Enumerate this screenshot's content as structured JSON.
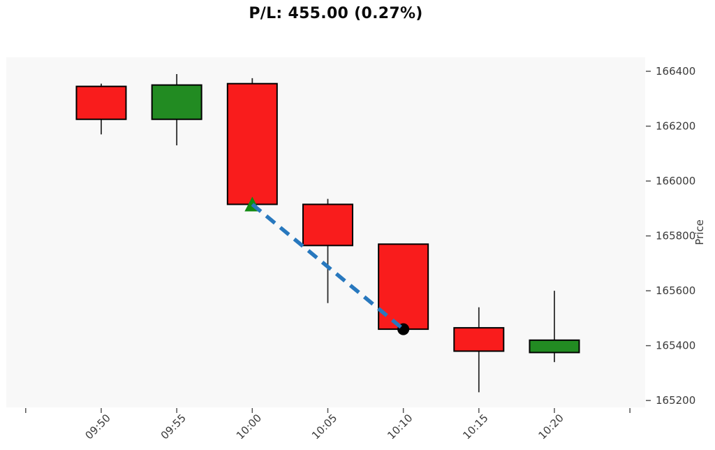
{
  "chart_data": {
    "type": "candlestick",
    "title": "P/L: 455.00 (0.27%)",
    "xlabel": "",
    "ylabel": "Price",
    "categories": [
      "09:50",
      "09:55",
      "10:00",
      "10:05",
      "10:10",
      "10:15",
      "10:20"
    ],
    "ohlc": [
      {
        "time": "09:50",
        "open": 166345,
        "high": 166355,
        "low": 166170,
        "close": 166225
      },
      {
        "time": "09:55",
        "open": 166225,
        "high": 166390,
        "low": 166130,
        "close": 166350
      },
      {
        "time": "10:00",
        "open": 166355,
        "high": 166375,
        "low": 165915,
        "close": 165915
      },
      {
        "time": "10:05",
        "open": 165915,
        "high": 165935,
        "low": 165555,
        "close": 165765
      },
      {
        "time": "10:10",
        "open": 165770,
        "high": 165770,
        "low": 165455,
        "close": 165460
      },
      {
        "time": "10:15",
        "open": 165465,
        "high": 165540,
        "low": 165230,
        "close": 165380
      },
      {
        "time": "10:20",
        "open": 165375,
        "high": 165600,
        "low": 165340,
        "close": 165420
      }
    ],
    "trade": {
      "entry": {
        "time": "10:00",
        "price": 165915,
        "marker": "triangle-up",
        "color": "#128a12"
      },
      "exit": {
        "time": "10:10",
        "price": 165460,
        "marker": "circle",
        "color": "#000000"
      },
      "connector": {
        "style": "dashed",
        "color": "#2878be"
      }
    },
    "x_tick_labels": [
      "",
      "09:50",
      "09:55",
      "10:00",
      "10:05",
      "10:10",
      "10:15",
      "10:20",
      ""
    ],
    "y_ticks": [
      166400,
      166200,
      166000,
      165800,
      165600,
      165400,
      165200
    ],
    "ylim": [
      165175,
      166451
    ],
    "grid": false,
    "legend": null,
    "colors": {
      "up": "#228b22",
      "down": "#f91c1c",
      "candle_edge": "#000000",
      "wick": "#2b2b2b",
      "plot_background": "#f8f8f8",
      "tick_mark": "#555555",
      "tick_text": "#3a3a3a",
      "title_text": "#0a0a0a"
    }
  }
}
